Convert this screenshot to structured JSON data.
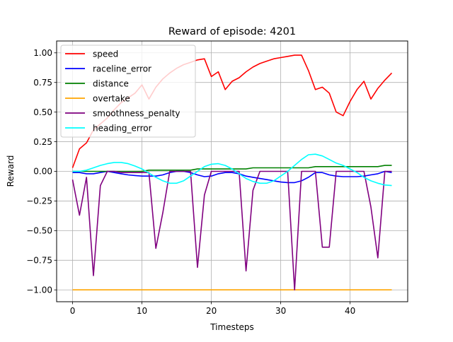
{
  "chart_data": {
    "type": "line",
    "title": "Reward of episode: 4201",
    "xlabel": "Timesteps",
    "ylabel": "Reward",
    "xlim": [
      -2.3,
      48.3
    ],
    "ylim": [
      -1.1,
      1.1
    ],
    "grid": true,
    "legend_position": "top-left",
    "x_ticks": [
      0,
      10,
      20,
      30,
      40
    ],
    "y_ticks": [
      -1.0,
      -0.75,
      -0.5,
      -0.25,
      0.0,
      0.25,
      0.5,
      0.75,
      1.0
    ],
    "y_tick_labels": [
      "−1.00",
      "−0.75",
      "−0.50",
      "−0.25",
      "0.00",
      "0.25",
      "0.50",
      "0.75",
      "1.00"
    ],
    "x": [
      0,
      1,
      2,
      3,
      4,
      5,
      6,
      7,
      8,
      9,
      10,
      11,
      12,
      13,
      14,
      15,
      16,
      17,
      18,
      19,
      20,
      21,
      22,
      23,
      24,
      25,
      26,
      27,
      28,
      29,
      30,
      31,
      32,
      33,
      34,
      35,
      36,
      37,
      38,
      39,
      40,
      41,
      42,
      43,
      44,
      45,
      46
    ],
    "series": [
      {
        "name": "speed",
        "color": "#ff0000",
        "values": [
          0.03,
          0.19,
          0.24,
          0.35,
          0.4,
          0.45,
          0.52,
          0.58,
          0.62,
          0.66,
          0.73,
          0.61,
          0.71,
          0.78,
          0.83,
          0.87,
          0.9,
          0.92,
          0.94,
          0.95,
          0.8,
          0.84,
          0.69,
          0.76,
          0.79,
          0.84,
          0.88,
          0.91,
          0.93,
          0.95,
          0.96,
          0.97,
          0.98,
          0.98,
          0.85,
          0.69,
          0.71,
          0.66,
          0.5,
          0.47,
          0.59,
          0.69,
          0.76,
          0.61,
          0.7,
          0.77,
          0.83
        ]
      },
      {
        "name": "raceline_error",
        "color": "#0000ff",
        "values": [
          -0.01,
          -0.01,
          -0.02,
          -0.02,
          -0.01,
          0.0,
          -0.01,
          -0.02,
          -0.03,
          -0.035,
          -0.04,
          -0.04,
          -0.04,
          -0.03,
          -0.01,
          0.0,
          0.0,
          -0.01,
          -0.03,
          -0.045,
          -0.04,
          -0.02,
          -0.01,
          -0.01,
          -0.02,
          -0.04,
          -0.05,
          -0.06,
          -0.07,
          -0.08,
          -0.09,
          -0.095,
          -0.095,
          -0.08,
          -0.05,
          -0.01,
          -0.01,
          -0.03,
          -0.04,
          -0.045,
          -0.045,
          -0.045,
          -0.04,
          -0.03,
          -0.02,
          0.0,
          -0.01
        ]
      },
      {
        "name": "distance",
        "color": "#008000",
        "values": [
          0.0,
          0.0,
          0.0,
          0.0,
          0.0,
          0.0,
          0.0,
          0.0,
          0.0,
          0.0,
          0.0,
          0.01,
          0.01,
          0.01,
          0.01,
          0.01,
          0.01,
          0.01,
          0.02,
          0.02,
          0.02,
          0.02,
          0.02,
          0.02,
          0.02,
          0.02,
          0.03,
          0.03,
          0.03,
          0.03,
          0.03,
          0.03,
          0.03,
          0.03,
          0.03,
          0.04,
          0.04,
          0.04,
          0.04,
          0.04,
          0.04,
          0.04,
          0.04,
          0.04,
          0.04,
          0.05,
          0.05
        ]
      },
      {
        "name": "overtake",
        "color": "#ffa500",
        "values": [
          -1,
          -1,
          -1,
          -1,
          -1,
          -1,
          -1,
          -1,
          -1,
          -1,
          -1,
          -1,
          -1,
          -1,
          -1,
          -1,
          -1,
          -1,
          -1,
          -1,
          -1,
          -1,
          -1,
          -1,
          -1,
          -1,
          -1,
          -1,
          -1,
          -1,
          -1,
          -1,
          -1,
          -1,
          -1,
          -1,
          -1,
          -1,
          -1,
          -1,
          -1,
          -1,
          -1,
          -1,
          -1,
          -1,
          -1
        ]
      },
      {
        "name": "smoothness_penalty",
        "color": "#800080",
        "values": [
          -0.07,
          -0.37,
          -0.05,
          -0.88,
          -0.12,
          0.0,
          0.0,
          -0.01,
          -0.01,
          -0.01,
          -0.01,
          -0.01,
          -0.65,
          -0.35,
          0.0,
          0.0,
          0.0,
          0.0,
          -0.81,
          -0.2,
          0.0,
          0.0,
          0.0,
          0.0,
          0.0,
          -0.84,
          -0.16,
          0.0,
          0.0,
          0.0,
          0.0,
          0.0,
          -1.0,
          0.0,
          0.0,
          0.0,
          -0.64,
          -0.64,
          0.0,
          0.0,
          0.0,
          0.0,
          0.0,
          -0.3,
          -0.73,
          0.0,
          0.0
        ]
      },
      {
        "name": "heading_error",
        "color": "#00ffff",
        "values": [
          0.0,
          0.0,
          0.01,
          0.03,
          0.05,
          0.065,
          0.075,
          0.075,
          0.065,
          0.045,
          0.02,
          -0.015,
          -0.05,
          -0.08,
          -0.1,
          -0.1,
          -0.08,
          -0.04,
          0.0,
          0.04,
          0.06,
          0.065,
          0.05,
          0.02,
          -0.02,
          -0.06,
          -0.085,
          -0.1,
          -0.1,
          -0.08,
          -0.04,
          0.0,
          0.05,
          0.1,
          0.14,
          0.145,
          0.13,
          0.1,
          0.07,
          0.05,
          0.02,
          -0.01,
          -0.05,
          -0.08,
          -0.1,
          -0.115,
          -0.12
        ]
      }
    ]
  }
}
